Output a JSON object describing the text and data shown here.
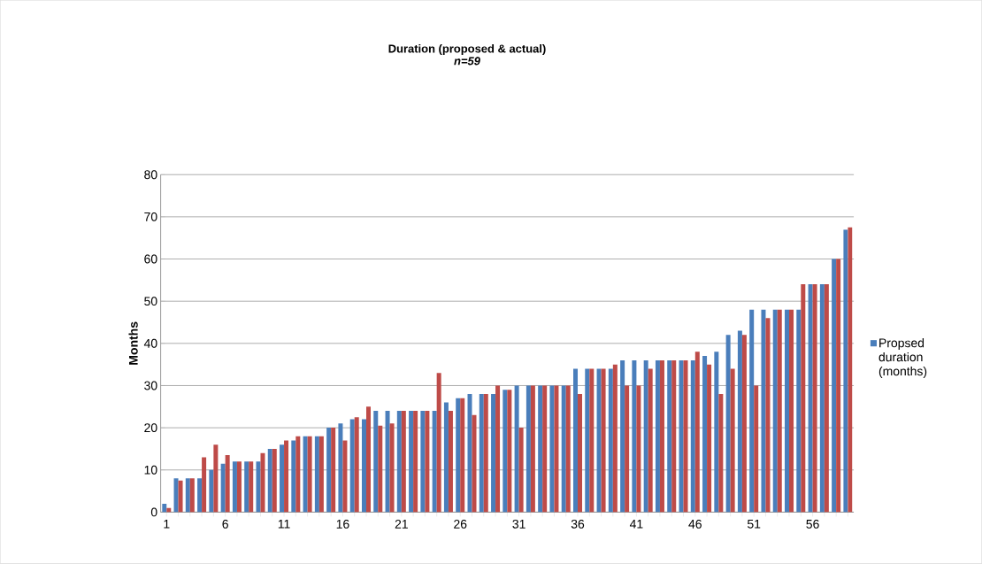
{
  "chart_data": {
    "type": "bar",
    "title": "Duration (proposed & actual)",
    "subtitle": "n=59",
    "ylabel": "Months",
    "categories": [
      "1",
      null,
      null,
      null,
      null,
      "6",
      null,
      null,
      null,
      null,
      "11",
      null,
      null,
      null,
      null,
      "16",
      null,
      null,
      null,
      null,
      "21",
      null,
      null,
      null,
      null,
      "26",
      null,
      null,
      null,
      null,
      "31",
      null,
      null,
      null,
      null,
      "36",
      null,
      null,
      null,
      null,
      "41",
      null,
      null,
      null,
      null,
      "46",
      null,
      null,
      null,
      null,
      "51",
      null,
      null,
      null,
      null,
      "56",
      null,
      null,
      null
    ],
    "series": [
      {
        "name": "Propsed duration (months)",
        "color": "#4a7ebb",
        "values": [
          2,
          8,
          8,
          8,
          10,
          11.5,
          12,
          12,
          12,
          15,
          16,
          17,
          18,
          18,
          20,
          21,
          22,
          22,
          24,
          24,
          24,
          24,
          24,
          24,
          26,
          27,
          28,
          28,
          28,
          29,
          30,
          30,
          30,
          30,
          30,
          34,
          34,
          34,
          34,
          36,
          36,
          36,
          36,
          36,
          36,
          36,
          37,
          38,
          42,
          43,
          48,
          48,
          48,
          48,
          48,
          54,
          54,
          60,
          67
        ]
      },
      {
        "color": "#be4b48",
        "values": [
          1,
          7.5,
          8,
          13,
          16,
          13.5,
          12,
          12,
          14,
          15,
          17,
          18,
          18,
          18,
          20,
          17,
          22.5,
          25,
          20.5,
          21,
          24,
          24,
          24,
          33,
          24,
          27,
          23,
          28,
          30,
          29,
          20,
          30,
          30,
          30,
          30,
          28,
          34,
          34,
          35,
          30,
          30,
          34,
          36,
          36,
          36,
          38,
          35,
          28,
          34,
          42,
          30,
          46,
          48,
          48,
          54,
          54,
          54,
          60,
          67.5
        ]
      }
    ],
    "ylim": [
      0,
      80
    ],
    "yticks": [
      0,
      10,
      20,
      30,
      40,
      50,
      60,
      70,
      80
    ],
    "grid": "y",
    "legend": "right"
  }
}
